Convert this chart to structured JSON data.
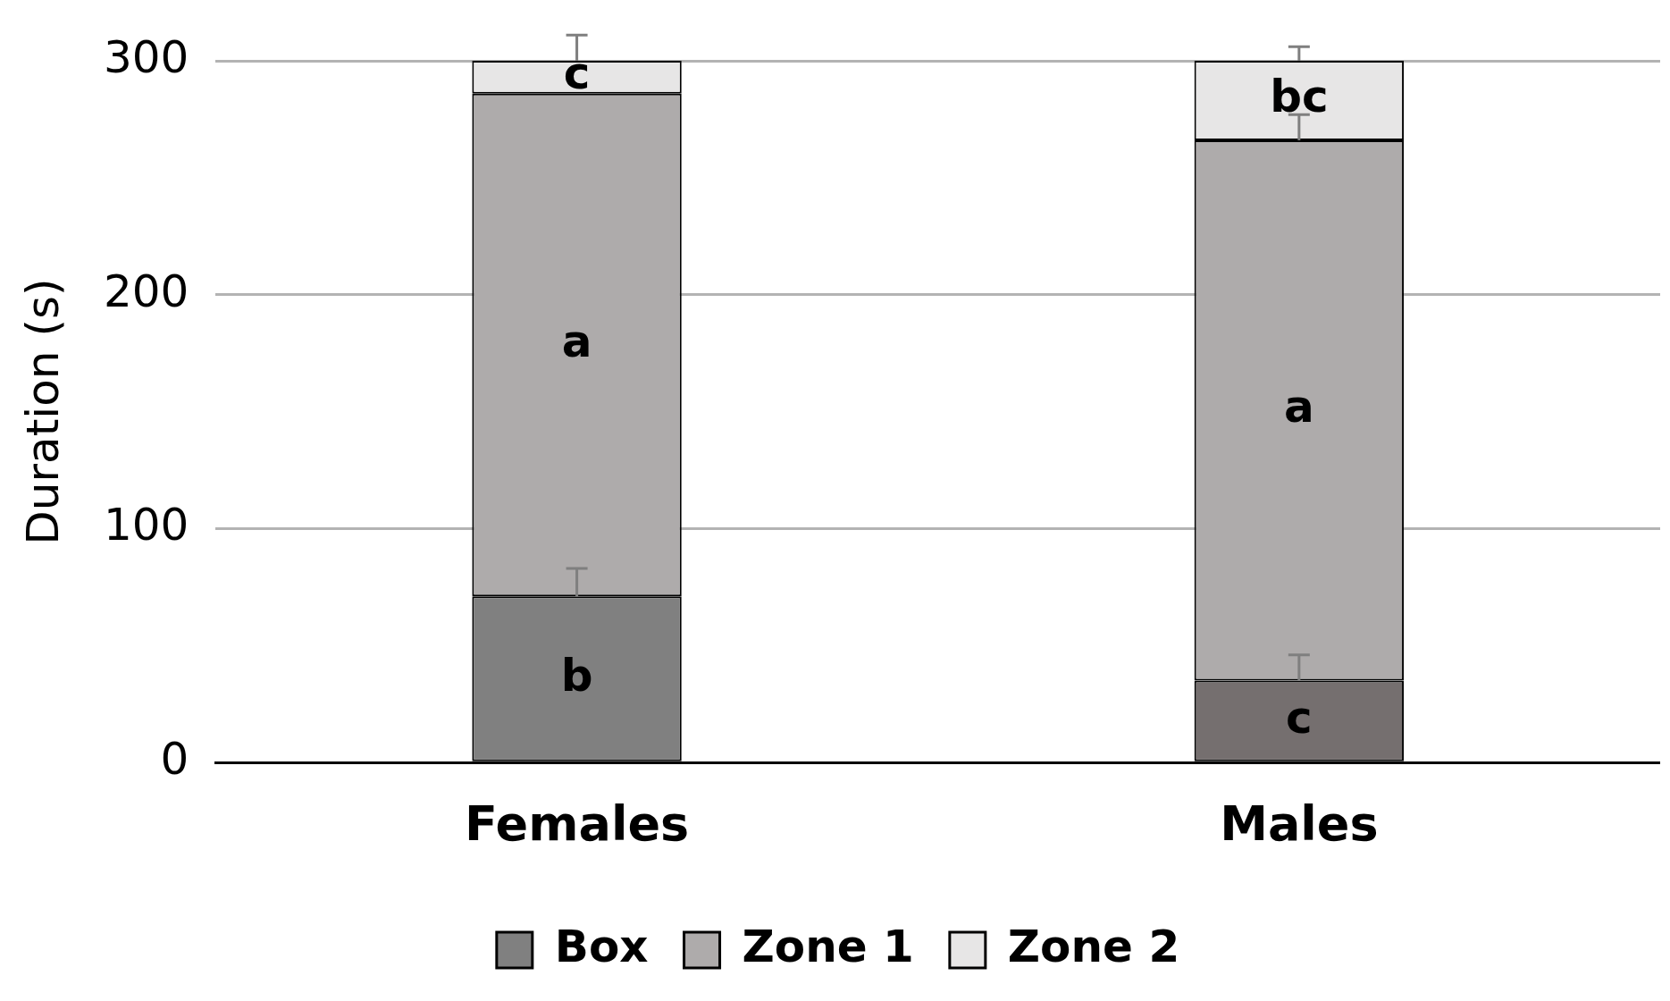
{
  "chart_data": {
    "type": "bar",
    "stacked": true,
    "ylabel": "Duration (s)",
    "categories": [
      "Females",
      "Males"
    ],
    "ylim": [
      0,
      300
    ],
    "yticks": [
      0,
      100,
      200,
      300
    ],
    "grid": "y",
    "legend": "bottom",
    "series": [
      {
        "name": "Box",
        "colors": [
          "#808080",
          "#756f6f"
        ],
        "values": [
          71,
          35
        ],
        "errors": [
          [
            71,
            83
          ],
          [
            35,
            46
          ]
        ],
        "value_labels": [
          "b",
          "c"
        ]
      },
      {
        "name": "Zone 1",
        "color": "#aeabab",
        "values": [
          215,
          231
        ],
        "errors": [
          null,
          [
            266,
            277
          ]
        ],
        "value_labels": [
          "a",
          "a"
        ]
      },
      {
        "name": "Zone 2",
        "color": "#e7e6e6",
        "values": [
          14,
          34
        ],
        "errors": [
          [
            300,
            311
          ],
          [
            300,
            306
          ]
        ],
        "value_labels": [
          "c",
          "bc"
        ]
      }
    ]
  }
}
